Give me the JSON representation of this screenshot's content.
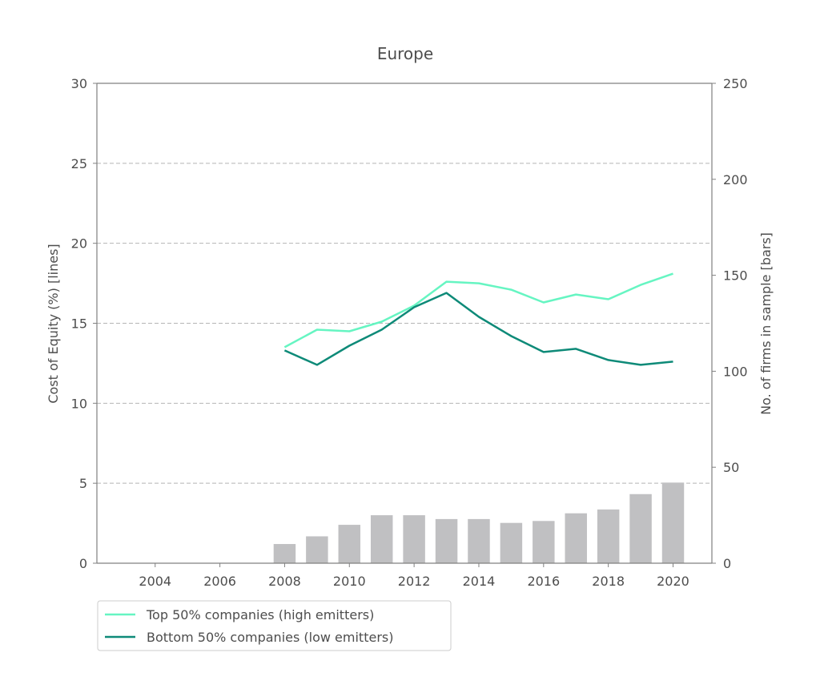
{
  "chart_data": {
    "type": "bar+line",
    "title": "Europe",
    "ylabel_left": "Cost of Equity (%) [lines]",
    "ylabel_right": "No. of firms in sample [bars]",
    "xlabel": "",
    "xlim": [
      2002.2,
      2021.2
    ],
    "ylim_left": [
      0,
      30
    ],
    "ylim_right": [
      0,
      250
    ],
    "x_ticks": [
      2004,
      2006,
      2008,
      2010,
      2012,
      2014,
      2016,
      2018,
      2020
    ],
    "y_ticks_left": [
      0,
      5,
      10,
      15,
      20,
      25,
      30
    ],
    "y_ticks_right": [
      0,
      50,
      100,
      150,
      200,
      250
    ],
    "grid": "horizontal dashed",
    "legend_position": "below-left",
    "bars": {
      "name": "No. of firms in sample",
      "color": "#c0c0c2",
      "x": [
        2008,
        2009,
        2010,
        2011,
        2012,
        2013,
        2014,
        2015,
        2016,
        2017,
        2018,
        2019,
        2020
      ],
      "values": [
        10,
        14,
        20,
        25,
        25,
        23,
        23,
        21,
        22,
        26,
        28,
        36,
        42
      ]
    },
    "series": [
      {
        "name": "Top 50% companies (high emitters)",
        "color": "#66f5c2",
        "x": [
          2008,
          2009,
          2010,
          2011,
          2012,
          2013,
          2014,
          2015,
          2016,
          2017,
          2018,
          2019,
          2020
        ],
        "values": [
          13.5,
          14.6,
          14.5,
          15.1,
          16.1,
          17.6,
          17.5,
          17.1,
          16.3,
          16.8,
          16.5,
          17.4,
          18.1
        ]
      },
      {
        "name": "Bottom 50% companies (low emitters)",
        "color": "#0e8a78",
        "x": [
          2008,
          2009,
          2010,
          2011,
          2012,
          2013,
          2014,
          2015,
          2016,
          2017,
          2018,
          2019,
          2020
        ],
        "values": [
          13.3,
          12.4,
          13.6,
          14.6,
          16.0,
          16.9,
          15.4,
          14.2,
          13.2,
          13.4,
          12.7,
          12.4,
          12.6
        ]
      }
    ]
  }
}
